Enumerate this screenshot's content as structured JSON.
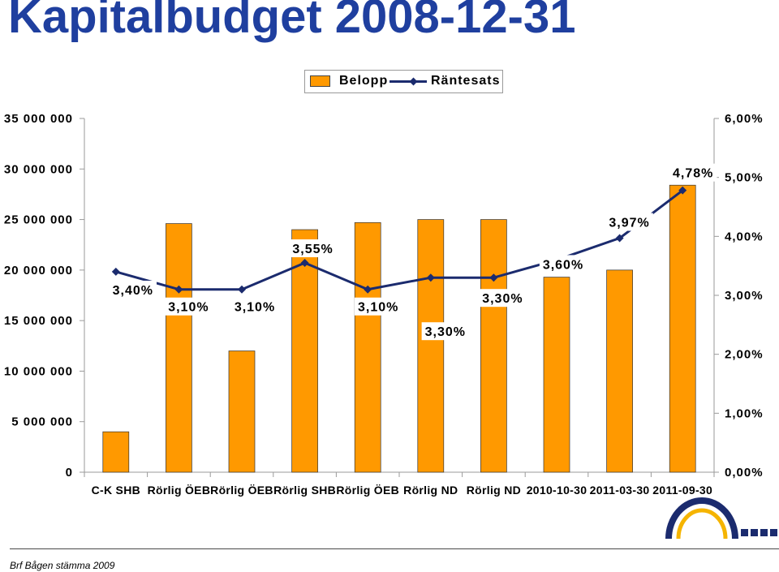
{
  "title": "Kapitalbudget 2008-12-31",
  "legend": {
    "items": [
      {
        "label": "Belopp",
        "marker": "bar-swatch"
      },
      {
        "label": "Räntesats",
        "marker": "line-diamond"
      }
    ]
  },
  "footer": {
    "text": "Brf Bågen stämma 2009"
  },
  "logo": {
    "icon": "arch-logo-icon"
  },
  "colors": {
    "title": "#1f3f9f",
    "bar": "#ff9900",
    "line": "#1b2b6e",
    "logo_arc": "#1b2b6e",
    "logo_accent": "#f5b400"
  },
  "chart_data": {
    "type": "bar",
    "categories": [
      "C-K SHB",
      "Rörlig ÖEB",
      "Rörlig ÖEB",
      "Rörlig SHB",
      "Rörlig ÖEB",
      "Rörlig ND",
      "Rörlig ND",
      "2010-10-30",
      "2011-03-30",
      "2011-09-30"
    ],
    "series": [
      {
        "name": "Belopp",
        "type": "bar",
        "axis": "left",
        "values": [
          4000000,
          24600000,
          12000000,
          24000000,
          24700000,
          25000000,
          25000000,
          19300000,
          20000000,
          28400000
        ]
      },
      {
        "name": "Räntesats",
        "type": "line",
        "axis": "right",
        "values": [
          3.4,
          3.1,
          3.1,
          3.55,
          3.1,
          3.3,
          3.3,
          3.6,
          3.97,
          4.78
        ],
        "data_labels": [
          "3,40%",
          "3,10%",
          "3,10%",
          "3,55%",
          "3,10%",
          "3,30%",
          "3,30%",
          "3,60%",
          "3,97%",
          "4,78%"
        ]
      }
    ],
    "ylim": [
      0,
      35000000
    ],
    "y2lim": [
      0,
      6
    ],
    "yticks": [
      {
        "value": 35000000,
        "label": "35 000 000"
      },
      {
        "value": 30000000,
        "label": "30 000 000"
      },
      {
        "value": 25000000,
        "label": "25 000 000"
      },
      {
        "value": 20000000,
        "label": "20 000 000"
      },
      {
        "value": 15000000,
        "label": "15 000 000"
      },
      {
        "value": 10000000,
        "label": "10 000 000"
      },
      {
        "value": 5000000,
        "label": "5 000 000"
      },
      {
        "value": 0,
        "label": "0"
      }
    ],
    "y2ticks": [
      {
        "value": 6,
        "label": "6,00%"
      },
      {
        "value": 5,
        "label": "5,00%"
      },
      {
        "value": 4,
        "label": "4,00%"
      },
      {
        "value": 3,
        "label": "3,00%"
      },
      {
        "value": 2,
        "label": "2,00%"
      },
      {
        "value": 1,
        "label": "1,00%"
      },
      {
        "value": 0,
        "label": "0,00%"
      }
    ],
    "grid": false,
    "legend_position": "top-center"
  }
}
